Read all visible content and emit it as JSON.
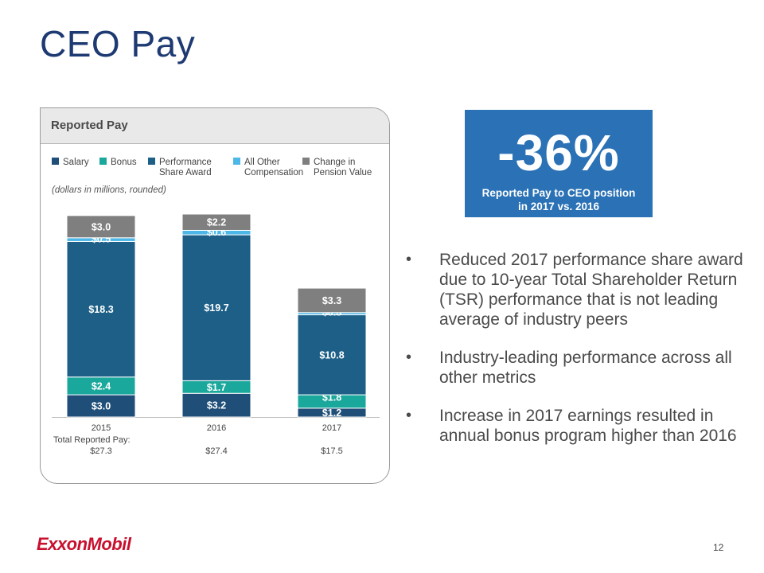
{
  "slide": {
    "title": "CEO Pay",
    "page_number": "12",
    "logo_text": "ExxonMobil"
  },
  "panel": {
    "header": "Reported Pay",
    "units_note": "(dollars in millions, rounded)",
    "legend": [
      {
        "label": "Salary",
        "color": "#1f4e79"
      },
      {
        "label": "Bonus",
        "color": "#1aa89c"
      },
      {
        "label": "Performance\nShare Award",
        "color": "#1d5f87"
      },
      {
        "label": "All Other\nCompensation",
        "color": "#4db8e8"
      },
      {
        "label": "Change in\nPension Value",
        "color": "#7f7f7f"
      }
    ],
    "total_label": "Total Reported Pay:"
  },
  "chart_data": {
    "type": "bar",
    "stacked": true,
    "categories": [
      "2015",
      "2016",
      "2017"
    ],
    "series": [
      {
        "name": "Salary",
        "color": "#1f4e79",
        "values": [
          3.0,
          3.2,
          1.2
        ],
        "labels": [
          "$3.0",
          "$3.2",
          "$1.2"
        ]
      },
      {
        "name": "Bonus",
        "color": "#1aa89c",
        "values": [
          2.4,
          1.7,
          1.8
        ],
        "labels": [
          "$2.4",
          "$1.7",
          "$1.8"
        ]
      },
      {
        "name": "Performance Share Award",
        "color": "#1d5f87",
        "values": [
          18.3,
          19.7,
          10.8
        ],
        "labels": [
          "$18.3",
          "$19.7",
          "$10.8"
        ]
      },
      {
        "name": "All Other Compensation",
        "color": "#4db8e8",
        "values": [
          0.5,
          0.6,
          0.3
        ],
        "labels": [
          "$0.5",
          "$0.6",
          "$0.3"
        ]
      },
      {
        "name": "Change in Pension Value",
        "color": "#7f7f7f",
        "values": [
          3.0,
          2.2,
          3.3
        ],
        "labels": [
          "$3.0",
          "$2.2",
          "$3.3"
        ]
      }
    ],
    "totals": [
      "$27.3",
      "$27.4",
      "$17.5"
    ],
    "ylim": [
      0,
      27.4
    ]
  },
  "callout": {
    "value": "-36%",
    "caption": "Reported Pay to CEO position\nin 2017 vs. 2016"
  },
  "bullets": [
    "Reduced 2017 performance share award due to 10-year Total Shareholder Return (TSR) performance that is not leading average of industry peers",
    "Industry-leading performance across all other metrics",
    "Increase in 2017 earnings resulted in annual bonus program higher than 2016"
  ],
  "bullet_marker": "•"
}
